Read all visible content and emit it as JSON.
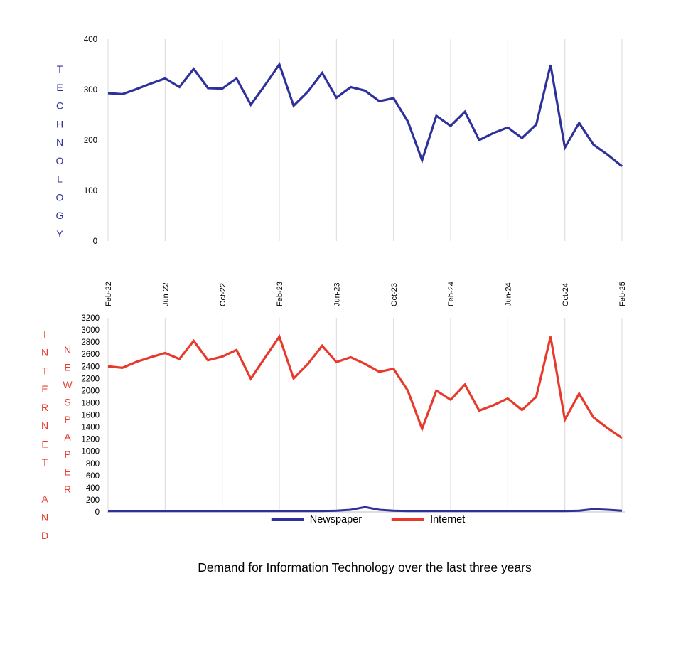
{
  "title": "Demand for Information Technology over the last three years",
  "colors": {
    "technology_blue": "#2F319B",
    "internet_red": "#E7392C",
    "newspaper_blue": "#2F319B",
    "gridline": "#D9D9D9",
    "axis_line": "#BFBFBF",
    "tick_text": "#000000"
  },
  "legend": {
    "items": [
      {
        "label": "Newspaper",
        "color": "#2F319B"
      },
      {
        "label": "Internet",
        "color": "#E7392C"
      }
    ]
  },
  "x_axis": {
    "tick_labels": [
      "Feb-22",
      "Jun-22",
      "Oct-22",
      "Feb-23",
      "Jun-23",
      "Oct-23",
      "Feb-24",
      "Jun-24",
      "Oct-24",
      "Feb-25"
    ],
    "tick_month_indices": [
      0,
      4,
      8,
      12,
      16,
      20,
      24,
      28,
      32,
      36
    ]
  },
  "chart_data": [
    {
      "type": "line",
      "position": "top",
      "title": "",
      "ylabel_stacked": "TECHNOLOGY",
      "ylim": [
        0,
        400
      ],
      "yticks": [
        0,
        100,
        200,
        300,
        400
      ],
      "grid": "vertical-only",
      "x": [
        "Feb-22",
        "Mar-22",
        "Apr-22",
        "May-22",
        "Jun-22",
        "Jul-22",
        "Aug-22",
        "Sep-22",
        "Oct-22",
        "Nov-22",
        "Dec-22",
        "Jan-23",
        "Feb-23",
        "Mar-23",
        "Apr-23",
        "May-23",
        "Jun-23",
        "Jul-23",
        "Aug-23",
        "Sep-23",
        "Oct-23",
        "Nov-23",
        "Dec-23",
        "Jan-24",
        "Feb-24",
        "Mar-24",
        "Apr-24",
        "May-24",
        "Jun-24",
        "Jul-24",
        "Aug-24",
        "Sep-24",
        "Oct-24",
        "Nov-24",
        "Dec-24",
        "Jan-25",
        "Feb-25"
      ],
      "series": [
        {
          "name": "Technology",
          "color": "#2F319B",
          "values": [
            293,
            291,
            301,
            312,
            322,
            305,
            341,
            303,
            302,
            322,
            270,
            309,
            350,
            268,
            296,
            333,
            284,
            305,
            298,
            277,
            283,
            237,
            160,
            248,
            228,
            256,
            200,
            214,
            225,
            204,
            231,
            349,
            185,
            234,
            191,
            171,
            148
          ]
        }
      ]
    },
    {
      "type": "line",
      "position": "bottom",
      "title": "",
      "ylabel_stacked_outer": "INTERNET AND",
      "ylabel_stacked_inner": "NEWSPAPER",
      "ylim": [
        0,
        3200
      ],
      "yticks": [
        0,
        200,
        400,
        600,
        800,
        1000,
        1200,
        1400,
        1600,
        1800,
        2000,
        2200,
        2400,
        2600,
        2800,
        3000,
        3200
      ],
      "grid": "vertical-only",
      "legend_position": "bottom",
      "x": [
        "Feb-22",
        "Mar-22",
        "Apr-22",
        "May-22",
        "Jun-22",
        "Jul-22",
        "Aug-22",
        "Sep-22",
        "Oct-22",
        "Nov-22",
        "Dec-22",
        "Jan-23",
        "Feb-23",
        "Mar-23",
        "Apr-23",
        "May-23",
        "Jun-23",
        "Jul-23",
        "Aug-23",
        "Sep-23",
        "Oct-23",
        "Nov-23",
        "Dec-23",
        "Jan-24",
        "Feb-24",
        "Mar-24",
        "Apr-24",
        "May-24",
        "Jun-24",
        "Jul-24",
        "Aug-24",
        "Sep-24",
        "Oct-24",
        "Nov-24",
        "Dec-24",
        "Jan-25",
        "Feb-25"
      ],
      "series": [
        {
          "name": "Newspaper",
          "color": "#2F319B",
          "values": [
            15,
            15,
            15,
            15,
            15,
            15,
            15,
            15,
            15,
            15,
            15,
            15,
            15,
            15,
            15,
            15,
            20,
            35,
            80,
            35,
            20,
            15,
            15,
            15,
            15,
            15,
            15,
            15,
            15,
            15,
            15,
            15,
            15,
            20,
            45,
            35,
            20
          ]
        },
        {
          "name": "Internet",
          "color": "#E7392C",
          "values": [
            2400,
            2375,
            2475,
            2550,
            2620,
            2520,
            2820,
            2500,
            2560,
            2670,
            2195,
            2545,
            2890,
            2200,
            2440,
            2740,
            2470,
            2550,
            2440,
            2310,
            2360,
            2000,
            1370,
            2000,
            1850,
            2100,
            1670,
            1760,
            1870,
            1680,
            1900,
            2890,
            1520,
            1950,
            1560,
            1380,
            1220
          ]
        }
      ]
    }
  ]
}
